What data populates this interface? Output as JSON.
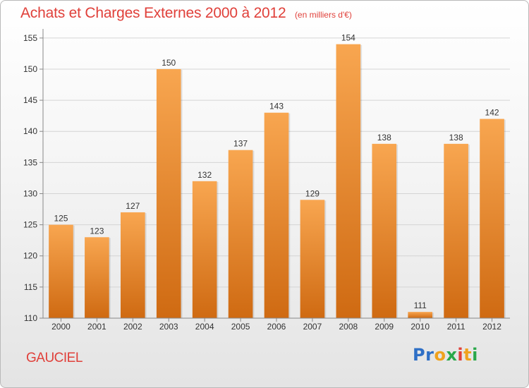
{
  "header": {
    "title": "Achats et Charges Externes 2000 à 2012",
    "subtitle": "(en milliers d'€)"
  },
  "footer": {
    "place": "GAUCIEL",
    "brand_letters": [
      {
        "ch": "P",
        "color": "#2e6fc6"
      },
      {
        "ch": "r",
        "color": "#2e6fc6"
      },
      {
        "ch": "o",
        "color": "#f0a21d"
      },
      {
        "ch": "x",
        "color": "#2aa84a"
      },
      {
        "ch": "i",
        "color": "#e0403a"
      },
      {
        "ch": "t",
        "color": "#f0a21d"
      },
      {
        "ch": "i",
        "color": "#2aa84a"
      }
    ]
  },
  "colors": {
    "accent": "#e0403a",
    "bar_top": "#f8a650",
    "bar_bottom": "#cf6a12"
  },
  "chart_data": {
    "type": "bar",
    "categories": [
      "2000",
      "2001",
      "2002",
      "2003",
      "2004",
      "2005",
      "2006",
      "2007",
      "2008",
      "2009",
      "2010",
      "2011",
      "2012"
    ],
    "values": [
      125,
      123,
      127,
      150,
      132,
      137,
      143,
      129,
      154,
      138,
      111,
      138,
      142
    ],
    "yticks": [
      110,
      115,
      120,
      125,
      130,
      135,
      140,
      145,
      150,
      155
    ],
    "ylim": [
      110,
      156
    ],
    "grid": true,
    "legend": "none"
  }
}
